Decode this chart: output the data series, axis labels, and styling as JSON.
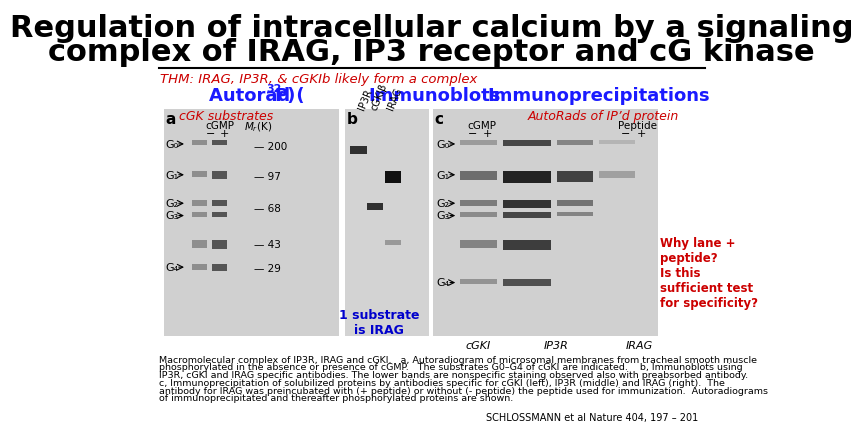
{
  "title_line1": "Regulation of intracellular calcium by a signaling",
  "title_line2": "complex of IRAG, IP3 receptor and cG kinase",
  "title_color": "#000000",
  "title_fontsize": 22,
  "bg_color": "#ffffff",
  "thm_text": "THM: IRAG, IP3R, & cGKIb likely form a complex",
  "thm_color": "#cc0000",
  "thm_fontsize": 9.5,
  "autorad_color": "#1a1aff",
  "autorad_fontsize": 13,
  "immunoblots_label": "Immunoblots",
  "immunoblots_color": "#1a1aff",
  "immunoblots_fontsize": 13,
  "immunoprec_label": "Immunoprecipitations",
  "immunoprec_color": "#1a1aff",
  "immunoprec_fontsize": 13,
  "cgk_substrates": "cGK substrates",
  "cgk_color": "#cc0000",
  "cgk_fontsize": 9,
  "autorads_ip": "AutoRads of IP’d protein",
  "autorads_ip_color": "#cc0000",
  "autorads_ip_fontsize": 9,
  "why_lane": "Why lane +\npeptide?\nIs this\nsufficient test\nfor specificity?",
  "why_lane_color": "#cc0000",
  "why_lane_fontsize": 8.5,
  "substrate_text": "1 substrate\nis IRAG",
  "substrate_color": "#0000cc",
  "substrate_fontsize": 9,
  "caption_line1": "Macromolecular complex of IP3R, IRAG and cGKI.   a, Autoradiogram of microsomal membranes from tracheal smooth muscle",
  "caption_line2": "phosphorylated in the absence or presence of cGMP.   The substrates G0–G4 of cGKI are indicated.    b, Immunoblots using",
  "caption_line3": "IP3R, cGKI and IRAG specific antibodies. The lower bands are nonspecific staining observed also with preabsorbed antibody.",
  "caption_line4": "c, Immunoprecipitation of solubilized proteins by antibodies specific for cGKI (left), IP3R (middle) and IRAG (right).  The",
  "caption_line5": "antibody for IRAG was preincubated with (+ peptide) or without (- peptide) the peptide used for immunization.  Autoradiograms",
  "caption_line6": "of immunoprecipitated and thereafter phosphorylated proteins are shown.",
  "schlossmann": "SCHLOSSMANN et al Nature 404, 197 – 201",
  "schlossmann_color": "#000000",
  "schlossmann_fontsize": 7,
  "caption_color": "#000000",
  "caption_fontsize": 6.8
}
